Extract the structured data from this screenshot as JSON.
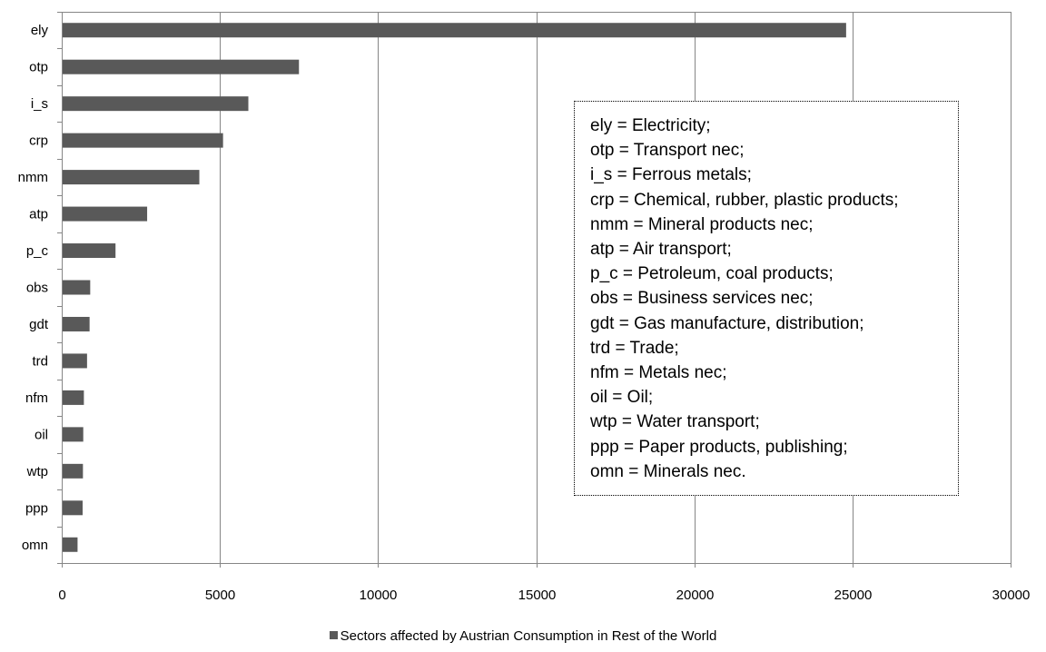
{
  "chart_data": {
    "type": "bar",
    "orientation": "horizontal",
    "categories": [
      "ely",
      "otp",
      "i_s",
      "crp",
      "nmm",
      "atp",
      "p_c",
      "obs",
      "gdt",
      "trd",
      "nfm",
      "oil",
      "wtp",
      "ppp",
      "omn"
    ],
    "series": [
      {
        "name": "Sectors affected by Austrian Consumption  in Rest of the World",
        "values": [
          24800,
          7500,
          5900,
          5100,
          4350,
          2700,
          1700,
          900,
          880,
          800,
          700,
          680,
          670,
          660,
          500
        ]
      }
    ],
    "xlim": [
      0,
      30000
    ],
    "x_ticks": [
      "0",
      "5000",
      "10000",
      "15000",
      "20000",
      "25000",
      "30000"
    ],
    "grid": "vertical",
    "legend_position": "bottom",
    "bar_color": "#595959",
    "gridline_color": "#868686"
  },
  "definitions_box": {
    "lines": [
      "ely = Electricity;",
      "otp = Transport nec;",
      "i_s = Ferrous metals;",
      "crp = Chemical, rubber, plastic products;",
      "nmm = Mineral products nec;",
      "atp = Air transport;",
      "p_c = Petroleum, coal products;",
      "obs = Business services nec;",
      "gdt = Gas manufacture, distribution;",
      "trd = Trade;",
      "nfm = Metals nec;",
      "oil = Oil;",
      "wtp = Water transport;",
      "ppp = Paper products, publishing;",
      "omn = Minerals nec."
    ]
  }
}
